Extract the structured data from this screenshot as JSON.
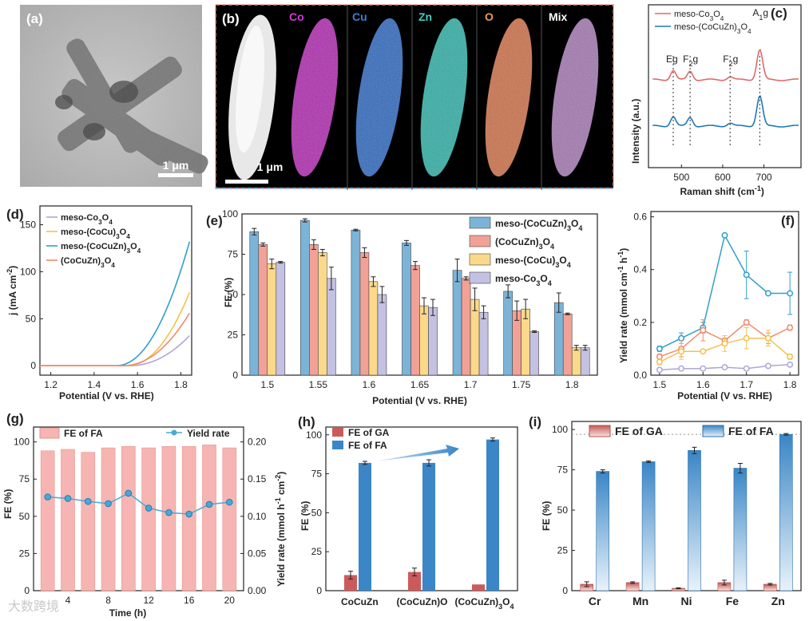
{
  "colors": {
    "meso_co3o4": "#b0a5d8",
    "meso_cocu": "#f2c24e",
    "meso_cocuzn": "#2e9fc9",
    "cocuzn": "#f08a6e",
    "bar_blue": "#7cb4d8",
    "bar_red": "#f2a196",
    "bar_yellow": "#fbd98b",
    "bar_purple": "#c4c1e2",
    "ga_red": "#cd5a5a",
    "fa_blue": "#3a86c6",
    "g_bar": "#f6b5b2",
    "g_line": "#4aa8d6",
    "raman_red": "#e06a6a",
    "raman_blue": "#1f78b4"
  },
  "panels": {
    "a": {
      "label": "(a)",
      "scale": "1 μm"
    },
    "b": {
      "label": "(b)",
      "scale": "1 μm",
      "maps": [
        "Co",
        "Cu",
        "Zn",
        "O",
        "Mix"
      ]
    }
  },
  "chart_data": [
    {
      "panel": "(c)",
      "type": "line",
      "xlabel": "Raman shift (cm-1)",
      "ylabel": "Intensity (a.u.)",
      "xlim": [
        420,
        790
      ],
      "xticks": [
        500,
        600,
        700
      ],
      "legend": [
        "meso-Co3O4",
        "meso-(CoCuZn)3O4"
      ],
      "peaks": [
        {
          "label": "Eg",
          "x": 480
        },
        {
          "label": "F2g",
          "x": 521
        },
        {
          "label": "F2g",
          "x": 618
        },
        {
          "label": "A1g",
          "x": 690
        }
      ]
    },
    {
      "panel": "(d)",
      "type": "line",
      "xlabel": "Potential (V vs. RHE)",
      "ylabel": "j (mA cm-2)",
      "xlim": [
        1.15,
        1.85
      ],
      "ylim": [
        -10,
        170
      ],
      "xticks": [
        1.2,
        1.4,
        1.6,
        1.8
      ],
      "yticks": [
        0,
        50,
        100,
        150
      ],
      "series": [
        {
          "name": "meso-Co3O4",
          "end": 32,
          "onset": 1.56
        },
        {
          "name": "meso-(CoCu)3O4",
          "end": 78,
          "onset": 1.55
        },
        {
          "name": "meso-(CoCuZn)3O4",
          "end": 132,
          "onset": 1.5
        },
        {
          "name": "(CoCuZn)3O4",
          "end": 56,
          "onset": 1.53
        }
      ]
    },
    {
      "panel": "(e)",
      "type": "bar",
      "xlabel": "Potential (V vs. RHE)",
      "ylabel": "FE (%)",
      "categories": [
        "1.5",
        "1.55",
        "1.6",
        "1.65",
        "1.7",
        "1.75",
        "1.8"
      ],
      "ylim": [
        0,
        100
      ],
      "yticks": [
        0,
        25,
        50,
        75,
        100
      ],
      "series": [
        {
          "name": "meso-(CoCuZn)3O4",
          "values": [
            89,
            96,
            90,
            82,
            65,
            52,
            45
          ],
          "err": [
            2,
            1,
            0.5,
            1.5,
            7,
            4,
            6
          ]
        },
        {
          "name": "(CoCuZn)3O4",
          "values": [
            81,
            81,
            76,
            68,
            60,
            40,
            38
          ],
          "err": [
            1,
            3,
            3,
            2.5,
            1,
            6,
            0.5
          ]
        },
        {
          "name": "meso-(CoCu)3O4",
          "values": [
            69,
            76,
            58,
            43,
            47,
            41,
            17
          ],
          "err": [
            3,
            2,
            3,
            5,
            7,
            6,
            1.5
          ]
        },
        {
          "name": "meso-Co3O4",
          "values": [
            70,
            60,
            50,
            42,
            39,
            27,
            17
          ],
          "err": [
            0.5,
            7,
            5,
            5,
            4,
            0.5,
            1.5
          ]
        }
      ]
    },
    {
      "panel": "(f)",
      "type": "line",
      "xlabel": "Potential (V vs. RHE)",
      "ylabel": "Yield rate (mmol cm-1 h-1)",
      "x": [
        1.5,
        1.55,
        1.6,
        1.65,
        1.7,
        1.75,
        1.8
      ],
      "xticks": [
        1.5,
        1.6,
        1.7,
        1.8
      ],
      "yticks": [
        0.0,
        0.2,
        0.4,
        0.6
      ],
      "ylim": [
        0,
        0.62
      ],
      "series": [
        {
          "name": "meso-(CoCuZn)3O4",
          "values": [
            0.1,
            0.14,
            0.18,
            0.53,
            0.38,
            0.31,
            0.31
          ],
          "err": [
            0.01,
            0.02,
            0.02,
            0.005,
            0.09,
            0.005,
            0.08
          ]
        },
        {
          "name": "(CoCuZn)3O4",
          "values": [
            0.07,
            0.1,
            0.17,
            0.13,
            0.2,
            0.14,
            0.18
          ],
          "err": [
            0.01,
            0.03,
            0.04,
            0.01,
            0.01,
            0.02,
            0.01
          ]
        },
        {
          "name": "meso-(CoCu)3O4",
          "values": [
            0.05,
            0.09,
            0.09,
            0.12,
            0.14,
            0.14,
            0.07
          ],
          "err": [
            0.01,
            0.03,
            0.005,
            0.03,
            0.04,
            0.03,
            0.01
          ]
        },
        {
          "name": "meso-Co3O4",
          "values": [
            0.02,
            0.025,
            0.025,
            0.03,
            0.025,
            0.035,
            0.04
          ],
          "err": [
            0.005,
            0.005,
            0.005,
            0.005,
            0.005,
            0.005,
            0.005
          ]
        }
      ]
    },
    {
      "panel": "(g)",
      "type": "bar+line",
      "xlabel": "Time (h)",
      "ylabel": "FE (%)",
      "y2label": "Yield rate (mmol h-1 cm-2)",
      "x": [
        2,
        4,
        6,
        8,
        10,
        12,
        14,
        16,
        18,
        20
      ],
      "xticks": [
        4,
        8,
        12,
        16,
        20
      ],
      "yticks": [
        0,
        25,
        50,
        75,
        100
      ],
      "y2ticks": [
        0.0,
        0.05,
        0.1,
        0.15,
        0.2
      ],
      "legend": [
        "FE of FA",
        "Yield rate"
      ],
      "fe": [
        94,
        95,
        93,
        96,
        97,
        96,
        97,
        97,
        98,
        96
      ],
      "yield": [
        0.126,
        0.124,
        0.12,
        0.117,
        0.131,
        0.111,
        0.105,
        0.103,
        0.116,
        0.119
      ]
    },
    {
      "panel": "(h)",
      "type": "bar",
      "ylabel": "FE (%)",
      "categories": [
        "CoCuZn",
        "(CoCuZn)O",
        "(CoCuZn)3O4"
      ],
      "yticks": [
        0,
        25,
        50,
        75,
        100
      ],
      "ylim": [
        0,
        105
      ],
      "series": [
        {
          "name": "FE of GA",
          "values": [
            10,
            12,
            4
          ],
          "err": [
            2.5,
            2.5,
            0
          ]
        },
        {
          "name": "FE of FA",
          "values": [
            82,
            82,
            97
          ],
          "err": [
            1,
            2,
            1
          ]
        }
      ]
    },
    {
      "panel": "(i)",
      "type": "bar",
      "ylabel": "FE (%)",
      "categories": [
        "Cr",
        "Mn",
        "Ni",
        "Fe",
        "Zn"
      ],
      "yticks": [
        0,
        25,
        50,
        75,
        100
      ],
      "ylim": [
        0,
        105
      ],
      "refline": 97,
      "series": [
        {
          "name": "FE of GA",
          "values": [
            4,
            5,
            1.5,
            5,
            4
          ],
          "err": [
            1.5,
            0.5,
            0.3,
            1.5,
            0.5
          ]
        },
        {
          "name": "FE of FA",
          "values": [
            74,
            80,
            87,
            76,
            97
          ],
          "err": [
            1,
            0.5,
            2,
            3,
            0.5
          ]
        }
      ]
    }
  ],
  "watermark": "大数跨境"
}
